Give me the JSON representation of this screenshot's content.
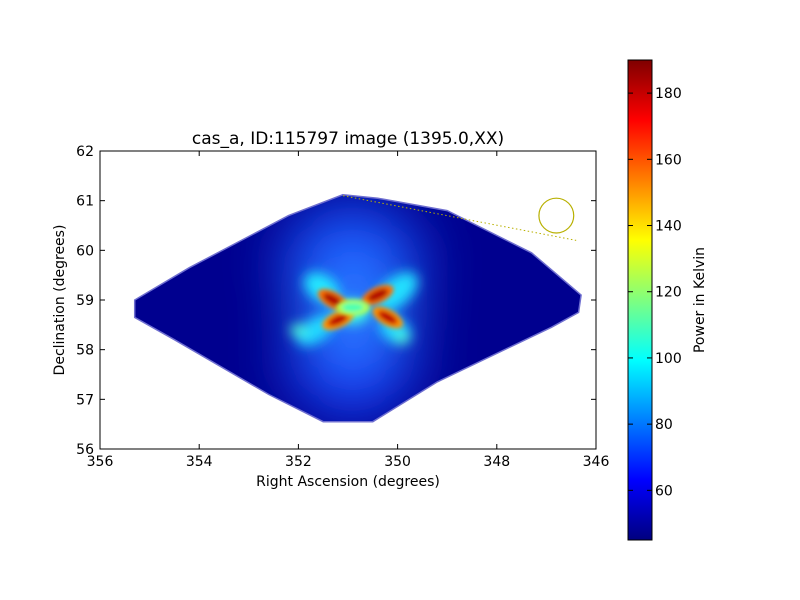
{
  "chart_data": {
    "type": "heatmap",
    "title": "cas_a, ID:115797 image (1395.0,XX)",
    "xlabel": "Right Ascension (degrees)",
    "ylabel": "Declination (degrees)",
    "xlim": [
      356,
      346
    ],
    "ylim": [
      56,
      62
    ],
    "x_ticks": [
      356,
      354,
      352,
      350,
      348,
      346
    ],
    "y_ticks": [
      56,
      57,
      58,
      59,
      60,
      61,
      62
    ],
    "grid": false,
    "colormap": "jet",
    "colorbar": {
      "label": "Power in Kelvin",
      "min": 45,
      "max": 190,
      "ticks": [
        60,
        80,
        100,
        120,
        140,
        160,
        180
      ]
    },
    "coverage_outline_deg": [
      [
        351.1,
        61.12
      ],
      [
        350.4,
        61.05
      ],
      [
        349.0,
        60.8
      ],
      [
        347.3,
        59.95
      ],
      [
        346.3,
        59.1
      ],
      [
        346.35,
        58.75
      ],
      [
        346.9,
        58.45
      ],
      [
        349.2,
        57.35
      ],
      [
        350.5,
        56.55
      ],
      [
        351.5,
        56.55
      ],
      [
        352.6,
        57.1
      ],
      [
        354.5,
        58.2
      ],
      [
        355.3,
        58.65
      ],
      [
        355.3,
        59.0
      ],
      [
        354.2,
        59.65
      ],
      [
        352.2,
        60.7
      ]
    ],
    "hotspots": [
      {
        "ra": 351.3,
        "dec": 59.0,
        "value": 185
      },
      {
        "ra": 350.4,
        "dec": 59.1,
        "value": 185
      },
      {
        "ra": 351.2,
        "dec": 58.6,
        "value": 180
      },
      {
        "ra": 350.2,
        "dec": 58.65,
        "value": 180
      },
      {
        "ra": 350.9,
        "dec": 58.85,
        "value": 110
      }
    ],
    "background_value": 48,
    "beam_marker": {
      "ra": 346.8,
      "dec": 60.7,
      "radius_deg": 0.35,
      "color": "#b8b000"
    },
    "beam_leader_line": [
      [
        351.1,
        61.1
      ],
      [
        346.4,
        60.2
      ]
    ]
  }
}
